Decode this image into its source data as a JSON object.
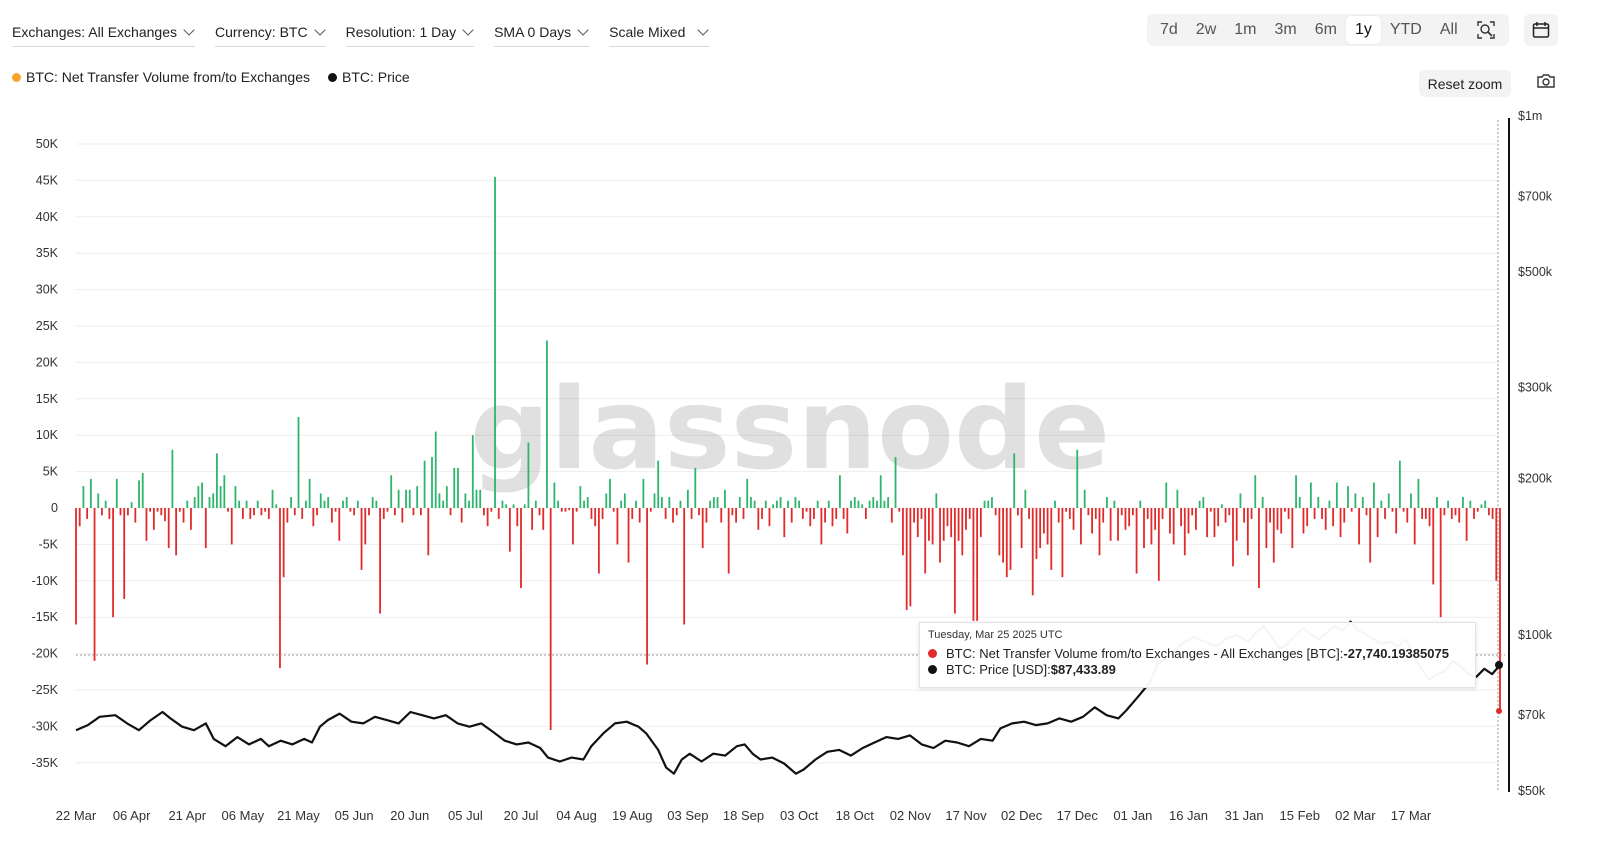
{
  "toolbar": {
    "exchanges": "Exchanges: All Exchanges",
    "currency": "Currency: BTC",
    "resolution": "Resolution: 1 Day",
    "sma": "SMA 0 Days",
    "scale": "Scale Mixed"
  },
  "ranges": [
    "7d",
    "2w",
    "1m",
    "3m",
    "6m",
    "1y",
    "YTD",
    "All"
  ],
  "active_range": "1y",
  "legend": {
    "netflow": "BTC: Net Transfer Volume from/to Exchanges",
    "price": "BTC: Price"
  },
  "reset_zoom": "Reset zoom",
  "watermark": "glassnode",
  "tooltip": {
    "date": "Tuesday, Mar 25 2025 UTC",
    "netflow_label": "BTC: Net Transfer Volume from/to Exchanges - All Exchanges [BTC]: ",
    "netflow_value": "-27,740.19385075",
    "price_label": "BTC: Price [USD]: ",
    "price_value": "$87,433.89"
  },
  "colors": {
    "inflow": "#e22a2a",
    "outflow": "#2db56b",
    "price": "#111111",
    "legend_netflow": "#f7a42b",
    "grid": "#eeeeee",
    "tooltip_red": "#e22a2a"
  },
  "chart_data": {
    "type": "bar",
    "title": "",
    "x_tick_labels": [
      "22 Mar",
      "06 Apr",
      "21 Apr",
      "06 May",
      "21 May",
      "05 Jun",
      "20 Jun",
      "05 Jul",
      "20 Jul",
      "04 Aug",
      "19 Aug",
      "03 Sep",
      "18 Sep",
      "03 Oct",
      "18 Oct",
      "02 Nov",
      "17 Nov",
      "02 Dec",
      "17 Dec",
      "01 Jan",
      "16 Jan",
      "31 Jan",
      "15 Feb",
      "02 Mar",
      "17 Mar"
    ],
    "x_range": [
      "2024-03-22",
      "2025-03-25"
    ],
    "y_left": {
      "unit": "BTC",
      "ticks": [
        "50K",
        "45K",
        "40K",
        "35K",
        "30K",
        "25K",
        "20K",
        "15K",
        "10K",
        "5K",
        "0",
        "-5K",
        "-10K",
        "-15K",
        "-20K",
        "-25K",
        "-30K",
        "-35K"
      ],
      "range": [
        -38000,
        50000
      ]
    },
    "y_right": {
      "unit": "USD",
      "scale": "log",
      "ticks": [
        "$1m",
        "$700k",
        "$500k",
        "$300k",
        "$200k",
        "$100k",
        "$70k",
        "$50k"
      ],
      "range": [
        50000,
        1000000
      ]
    },
    "series": [
      {
        "name": "BTC: Net Transfer Volume from/to Exchanges",
        "unit": "BTC",
        "values": [
          -16000,
          -2500,
          3000,
          -1500,
          4000,
          -21000,
          2000,
          -1000,
          1000,
          -1500,
          -15000,
          4000,
          -1000,
          -12500,
          -1000,
          800,
          -2000,
          3800,
          4800,
          -4500,
          -500,
          -3000,
          -500,
          -1000,
          -1800,
          -5500,
          8000,
          -6500,
          -500,
          -2000,
          1000,
          -3000,
          1500,
          3000,
          3500,
          -5500,
          1500,
          2000,
          7500,
          3000,
          4500,
          -500,
          -5000,
          3000,
          1000,
          -1500,
          1000,
          -1500,
          -1000,
          1000,
          -1000,
          -500,
          -1500,
          2500,
          500,
          -22000,
          -9500,
          -2000,
          1500,
          -1000,
          12500,
          -1500,
          1000,
          4000,
          -2500,
          -1000,
          2000,
          1000,
          1500,
          -2000,
          -500,
          -4500,
          1000,
          1500,
          -500,
          -1000,
          1000,
          -8500,
          -5000,
          -1000,
          1500,
          1000,
          -14500,
          -1500,
          -500,
          4500,
          -1000,
          2500,
          -2000,
          2500,
          2500,
          -1000,
          3000,
          -1000,
          6500,
          -6500,
          7000,
          10500,
          2000,
          1000,
          3000,
          -1000,
          5500,
          5500,
          -2000,
          2000,
          1000,
          10000,
          2500,
          2500,
          -1000,
          -2500,
          -500,
          45500,
          -1500,
          1000,
          500,
          -6000,
          500,
          -2500,
          -11000,
          500,
          9000,
          -3000,
          1000,
          -1000,
          -3000,
          23000,
          -30500,
          3500,
          1000,
          -500,
          -500,
          -300,
          -5000,
          -500,
          3000,
          1000,
          1500,
          -1500,
          -2500,
          -9000,
          -1500,
          2000,
          4000,
          -500,
          -5000,
          1000,
          2000,
          -7500,
          -1500,
          1000,
          -2000,
          4000,
          -21500,
          -500,
          2000,
          6500,
          1500,
          -1500,
          1500,
          -2000,
          -1000,
          1000,
          -16000,
          2500,
          -1500,
          5500,
          -1000,
          -5500,
          -2000,
          1000,
          1500,
          1500,
          -2000,
          2500,
          -9000,
          -1000,
          -2000,
          1500,
          -1500,
          4000,
          1500,
          1000,
          -3000,
          -1500,
          1000,
          -2500,
          500,
          1000,
          1500,
          -4000,
          1000,
          -2000,
          1500,
          1000,
          -1500,
          -500,
          -2500,
          -1500,
          1000,
          -5000,
          -2000,
          1000,
          -2500,
          -1500,
          4500,
          -1500,
          -3500,
          1000,
          1500,
          1000,
          500,
          -1500,
          1000,
          1500,
          1000,
          4500,
          1000,
          1500,
          -2000,
          7000,
          -500,
          -6500,
          -14000,
          -13500,
          -2000,
          -4000,
          -1500,
          -9000,
          -4500,
          -5000,
          2000,
          -7500,
          -4500,
          -2500,
          -4000,
          -14500,
          -4500,
          -6500,
          -3000,
          -1500,
          -15500,
          -15500,
          -4000,
          1000,
          1000,
          1500,
          -1000,
          -6500,
          -7500,
          -9500,
          -8500,
          7500,
          -1000,
          -5500,
          2500,
          -1500,
          -12000,
          -7000,
          -5500,
          -3500,
          -5000,
          -8500,
          1000,
          -2000,
          -9500,
          -500,
          -1500,
          -3000,
          8000,
          -5000,
          2500,
          -1000,
          -3500,
          -1500,
          -6500,
          -2000,
          1500,
          -4500,
          1000,
          -4500,
          -1000,
          -3000,
          -2500,
          -1000,
          -9000,
          1000,
          -5500,
          -1500,
          -5000,
          -3000,
          -10000,
          -1500,
          3500,
          -3500,
          -5000,
          2500,
          -2500,
          -6500,
          -3500,
          -1000,
          -3000,
          1000,
          1500,
          -4000,
          -500,
          -4000,
          -2500,
          500,
          -2000,
          -1000,
          -8000,
          -4500,
          2000,
          -2000,
          -6500,
          -1500,
          4500,
          -11000,
          1500,
          -5500,
          -2000,
          -7500,
          -3000,
          -3500,
          -500,
          -1500,
          -5500,
          4500,
          1500,
          -3500,
          -2500,
          3500,
          -1500,
          1500,
          -1500,
          -3000,
          1000,
          -2500,
          3500,
          -4000,
          -2000,
          3000,
          -500,
          2000,
          -5000,
          1500,
          -1000,
          -7500,
          3500,
          -4000,
          1000,
          -1500,
          2000,
          -500,
          -3500,
          6500,
          -500,
          -2000,
          2000,
          -5000,
          4000,
          -1500,
          -1500,
          -2500,
          -10500,
          1500,
          -15000,
          -1000,
          1000,
          -1500,
          -1000,
          -2000,
          1500,
          -4500,
          1000,
          -1500,
          -500,
          500,
          1000,
          -1000,
          -1500,
          -10000,
          -27740
        ]
      },
      {
        "name": "BTC: Price",
        "unit": "USD",
        "points": [
          [
            0,
            65500
          ],
          [
            6,
            67000
          ],
          [
            12,
            69500
          ],
          [
            20,
            70000
          ],
          [
            26,
            67500
          ],
          [
            32,
            65500
          ],
          [
            38,
            68500
          ],
          [
            44,
            71000
          ],
          [
            48,
            69000
          ],
          [
            54,
            66500
          ],
          [
            60,
            65500
          ],
          [
            66,
            67500
          ],
          [
            70,
            63000
          ],
          [
            76,
            61000
          ],
          [
            82,
            63500
          ],
          [
            88,
            61500
          ],
          [
            94,
            63000
          ],
          [
            98,
            61000
          ],
          [
            104,
            62500
          ],
          [
            110,
            61500
          ],
          [
            116,
            63000
          ],
          [
            120,
            62000
          ],
          [
            124,
            66500
          ],
          [
            128,
            68500
          ],
          [
            134,
            70500
          ],
          [
            140,
            68000
          ],
          [
            146,
            67500
          ],
          [
            152,
            69500
          ],
          [
            158,
            68500
          ],
          [
            164,
            67500
          ],
          [
            170,
            71000
          ],
          [
            176,
            70000
          ],
          [
            182,
            69000
          ],
          [
            188,
            70000
          ],
          [
            194,
            67500
          ],
          [
            200,
            66500
          ],
          [
            206,
            67500
          ],
          [
            212,
            65000
          ],
          [
            218,
            62500
          ],
          [
            224,
            61500
          ],
          [
            230,
            62000
          ],
          [
            236,
            60500
          ],
          [
            240,
            58000
          ],
          [
            246,
            57000
          ],
          [
            252,
            58000
          ],
          [
            258,
            57500
          ],
          [
            262,
            61000
          ],
          [
            268,
            64500
          ],
          [
            274,
            67500
          ],
          [
            280,
            68000
          ],
          [
            286,
            66500
          ],
          [
            290,
            64500
          ],
          [
            296,
            60000
          ],
          [
            300,
            55500
          ],
          [
            304,
            54000
          ],
          [
            308,
            57500
          ],
          [
            312,
            59000
          ],
          [
            318,
            57000
          ],
          [
            324,
            59000
          ],
          [
            330,
            58500
          ],
          [
            336,
            61000
          ],
          [
            340,
            61500
          ],
          [
            344,
            59000
          ],
          [
            348,
            57500
          ],
          [
            354,
            58000
          ],
          [
            360,
            56500
          ],
          [
            366,
            54000
          ],
          [
            370,
            55000
          ],
          [
            376,
            57500
          ],
          [
            382,
            59500
          ],
          [
            388,
            60000
          ],
          [
            394,
            58500
          ],
          [
            400,
            60500
          ],
          [
            406,
            62000
          ],
          [
            412,
            63500
          ],
          [
            418,
            63000
          ],
          [
            424,
            64000
          ],
          [
            430,
            61500
          ],
          [
            436,
            60500
          ],
          [
            442,
            62500
          ],
          [
            448,
            62000
          ],
          [
            454,
            61000
          ],
          [
            460,
            63000
          ],
          [
            466,
            62500
          ],
          [
            470,
            66000
          ],
          [
            476,
            67500
          ],
          [
            482,
            68000
          ],
          [
            488,
            67000
          ],
          [
            494,
            67500
          ],
          [
            500,
            69000
          ],
          [
            506,
            68000
          ],
          [
            512,
            69500
          ],
          [
            518,
            72500
          ],
          [
            524,
            70000
          ],
          [
            530,
            69000
          ],
          [
            534,
            71500
          ],
          [
            540,
            76000
          ],
          [
            546,
            81000
          ],
          [
            550,
            88000
          ],
          [
            556,
            91000
          ],
          [
            562,
            96000
          ],
          [
            568,
            99000
          ],
          [
            574,
            97000
          ],
          [
            580,
            95000
          ],
          [
            584,
            98000
          ],
          [
            590,
            100000
          ],
          [
            596,
            97000
          ],
          [
            600,
            101000
          ],
          [
            604,
            104000
          ],
          [
            608,
            99000
          ],
          [
            612,
            94000
          ],
          [
            616,
            96000
          ],
          [
            620,
            100000
          ],
          [
            624,
            103000
          ],
          [
            628,
            100000
          ],
          [
            632,
            98000
          ],
          [
            636,
            101000
          ],
          [
            640,
            104000
          ],
          [
            644,
            102000
          ],
          [
            648,
            106000
          ],
          [
            652,
            102000
          ],
          [
            656,
            100000
          ],
          [
            660,
            98000
          ],
          [
            664,
            96000
          ],
          [
            668,
            97000
          ],
          [
            672,
            95000
          ],
          [
            676,
            98000
          ],
          [
            680,
            92000
          ],
          [
            684,
            86000
          ],
          [
            688,
            82000
          ],
          [
            692,
            84000
          ],
          [
            696,
            85000
          ],
          [
            700,
            89000
          ],
          [
            704,
            87000
          ],
          [
            708,
            84000
          ],
          [
            712,
            83000
          ],
          [
            716,
            86000
          ],
          [
            720,
            84000
          ],
          [
            724,
            87433.89
          ]
        ]
      }
    ],
    "grid": true,
    "legend_placement": "top-left",
    "highlighted_point": {
      "date": "2025-03-25",
      "netflow": -27740.19385075,
      "price": 87433.89
    }
  }
}
